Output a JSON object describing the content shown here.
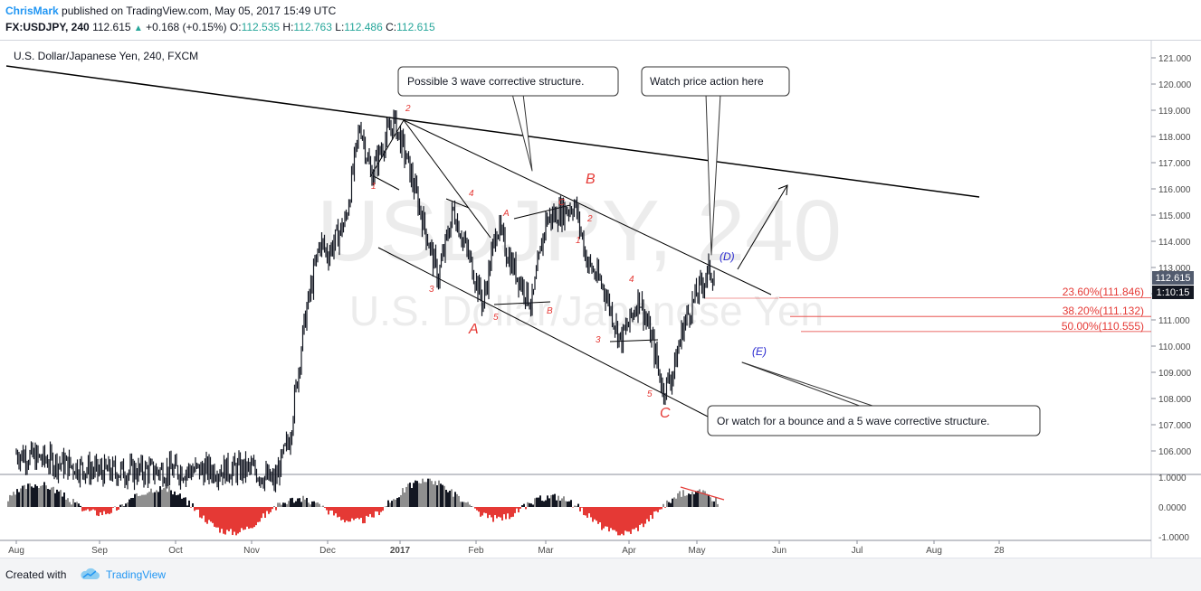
{
  "header": {
    "author": "ChrisMark",
    "published_text": "published on TradingView.com, May 05, 2017 15:49 UTC",
    "symbol": "FX:USDJPY, 240",
    "last": "112.615",
    "change_arrow": "▲",
    "change": "+0.168 (+0.15%)",
    "o_label": "O:",
    "o_value": "112.535",
    "h_label": "H:",
    "h_value": "112.763",
    "l_label": "L:",
    "l_value": "112.486",
    "c_label": "C:",
    "c_value": "112.615"
  },
  "chart": {
    "title": "U.S. Dollar/Japanese Yen, 240, FXCM",
    "watermark_symbol": "USDJPY, 240",
    "watermark_name": "U.S. Dollar/Japanese Yen",
    "price_tag": "112.615",
    "countdown_tag": "1:10:15"
  },
  "colors": {
    "candle": "#131722",
    "red": "#e53935",
    "blue": "#2b2bd0",
    "author": "#2196f3",
    "up": "#26a69a"
  },
  "annotations": {
    "callout_1": "Possible 3 wave corrective structure.",
    "callout_2": "Watch price action here",
    "callout_3": "Or watch for a bounce and a 5 wave corrective structure.",
    "fib_1": "23.60%(111.846)",
    "fib_2": "38.20%(111.132)",
    "fib_3": "50.00%(110.555)",
    "wave_A": "A",
    "wave_B": "B",
    "wave_C": "C",
    "wave_D": "(D)",
    "wave_E": "(E)"
  },
  "chart_data": {
    "type": "candlestick",
    "series_name": "FX:USDJPY, 240",
    "x_ticks": [
      "Aug",
      "Sep",
      "Oct",
      "Nov",
      "Dec",
      "2017",
      "Feb",
      "Mar",
      "Apr",
      "May",
      "Jun",
      "Jul",
      "Aug",
      "28"
    ],
    "y_ticks": [
      "121.000",
      "120.000",
      "119.000",
      "118.000",
      "117.000",
      "116.000",
      "115.000",
      "114.000",
      "113.000",
      "112.000",
      "111.000",
      "110.000",
      "109.000",
      "108.000",
      "107.000",
      "106.000"
    ],
    "ylim": [
      105.1,
      121.4
    ],
    "price_path": [
      {
        "t": 0.0,
        "v": 105.9
      },
      {
        "t": 1.0,
        "v": 105.2
      },
      {
        "t": 3.0,
        "v": 105.3
      },
      {
        "t": 3.3,
        "v": 104.8
      },
      {
        "t": 3.5,
        "v": 106.5
      },
      {
        "t": 3.7,
        "v": 111.0
      },
      {
        "t": 3.9,
        "v": 114.0
      },
      {
        "t": 4.0,
        "v": 113.5
      },
      {
        "t": 4.25,
        "v": 114.8
      },
      {
        "t": 4.45,
        "v": 118.5
      },
      {
        "t": 4.6,
        "v": 116.5
      },
      {
        "t": 4.78,
        "v": 117.8
      },
      {
        "t": 4.92,
        "v": 118.6
      },
      {
        "t": 5.1,
        "v": 117.0
      },
      {
        "t": 5.3,
        "v": 114.8
      },
      {
        "t": 5.5,
        "v": 112.6
      },
      {
        "t": 5.7,
        "v": 115.2
      },
      {
        "t": 5.95,
        "v": 113.0
      },
      {
        "t": 6.1,
        "v": 111.6
      },
      {
        "t": 6.3,
        "v": 114.6
      },
      {
        "t": 6.5,
        "v": 113.2
      },
      {
        "t": 6.8,
        "v": 111.6
      },
      {
        "t": 7.0,
        "v": 114.8
      },
      {
        "t": 7.35,
        "v": 115.4
      },
      {
        "t": 7.5,
        "v": 113.2
      },
      {
        "t": 7.7,
        "v": 112.2
      },
      {
        "t": 7.9,
        "v": 110.2
      },
      {
        "t": 8.15,
        "v": 111.9
      },
      {
        "t": 8.35,
        "v": 110.1
      },
      {
        "t": 8.5,
        "v": 108.3
      },
      {
        "t": 8.65,
        "v": 109.0
      },
      {
        "t": 8.8,
        "v": 110.8
      },
      {
        "t": 9.0,
        "v": 112.0
      },
      {
        "t": 9.15,
        "v": 112.9
      },
      {
        "t": 9.22,
        "v": 112.615
      }
    ],
    "fib_levels": [
      {
        "label": "23.60%",
        "value": 111.846
      },
      {
        "label": "38.20%",
        "value": 111.132
      },
      {
        "label": "50.00%",
        "value": 110.555
      }
    ],
    "wave_labels": [
      "1",
      "2",
      "3",
      "4",
      "5",
      "A",
      "B",
      "C",
      "A",
      "B",
      "C",
      "1",
      "2",
      "3",
      "4",
      "5",
      "(D)",
      "(E)"
    ],
    "oscillator": {
      "y_ticks": [
        "1.0000",
        "0.0000",
        "-1.0000"
      ],
      "ylim": [
        -1.1,
        1.1
      ]
    }
  }
}
